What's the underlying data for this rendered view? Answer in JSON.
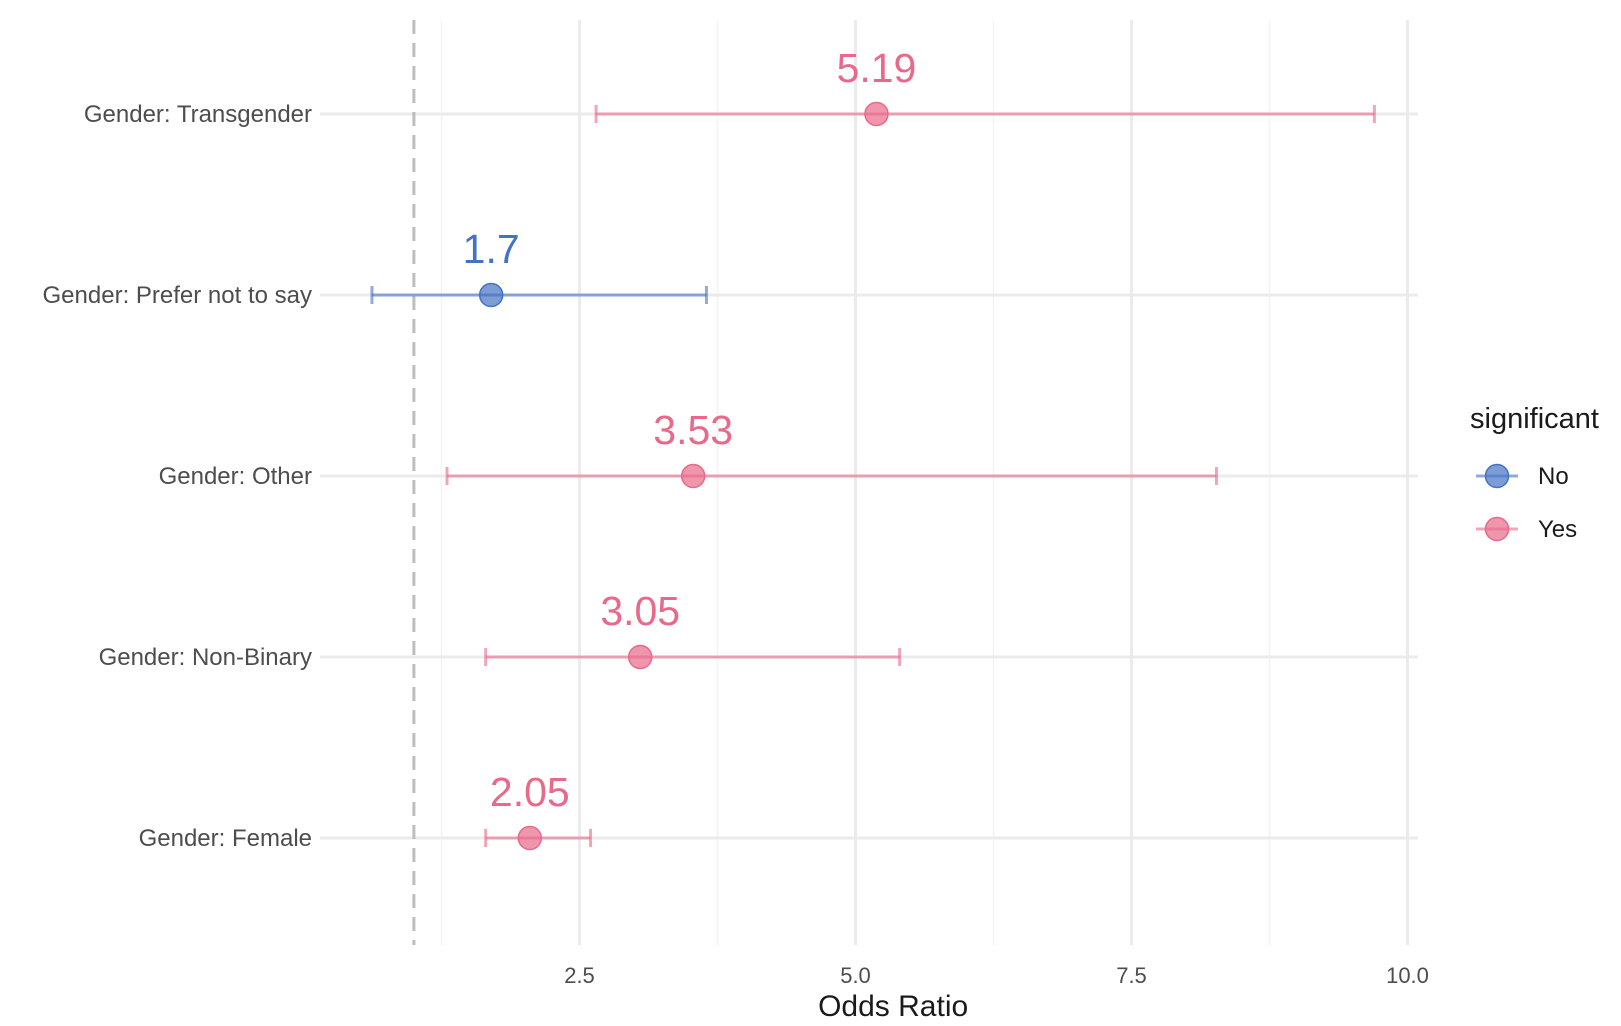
{
  "chart_data": {
    "type": "scatter",
    "subtype": "forest-plot",
    "title": "",
    "xlabel": "Odds Ratio",
    "ylabel": "",
    "xlim": [
      0.5,
      10.2
    ],
    "x_ticks": [
      2.5,
      5.0,
      7.5,
      10.0
    ],
    "x_tick_labels": [
      "2.5",
      "5.0",
      "7.5",
      "10.0"
    ],
    "x_minor_ticks": [
      1.25,
      3.75,
      6.25,
      8.75
    ],
    "reference_line": 1,
    "grid": true,
    "legend": {
      "title": "significant",
      "placement": "right",
      "entries": [
        {
          "label": "No",
          "color": "#4472c4"
        },
        {
          "label": "Yes",
          "color": "#e8698a"
        }
      ]
    },
    "points": [
      {
        "category": "Gender: Transgender",
        "estimate": 5.19,
        "ci_low": 2.65,
        "ci_high": 9.7,
        "significant": "Yes",
        "label": "5.19"
      },
      {
        "category": "Gender: Prefer not to say",
        "estimate": 1.7,
        "ci_low": 0.62,
        "ci_high": 3.65,
        "significant": "No",
        "label": "1.7"
      },
      {
        "category": "Gender: Other",
        "estimate": 3.53,
        "ci_low": 1.3,
        "ci_high": 8.27,
        "significant": "Yes",
        "label": "3.53"
      },
      {
        "category": "Gender: Non-Binary",
        "estimate": 3.05,
        "ci_low": 1.65,
        "ci_high": 5.4,
        "significant": "Yes",
        "label": "3.05"
      },
      {
        "category": "Gender: Female",
        "estimate": 2.05,
        "ci_low": 1.65,
        "ci_high": 2.6,
        "significant": "Yes",
        "label": "2.05"
      }
    ]
  }
}
